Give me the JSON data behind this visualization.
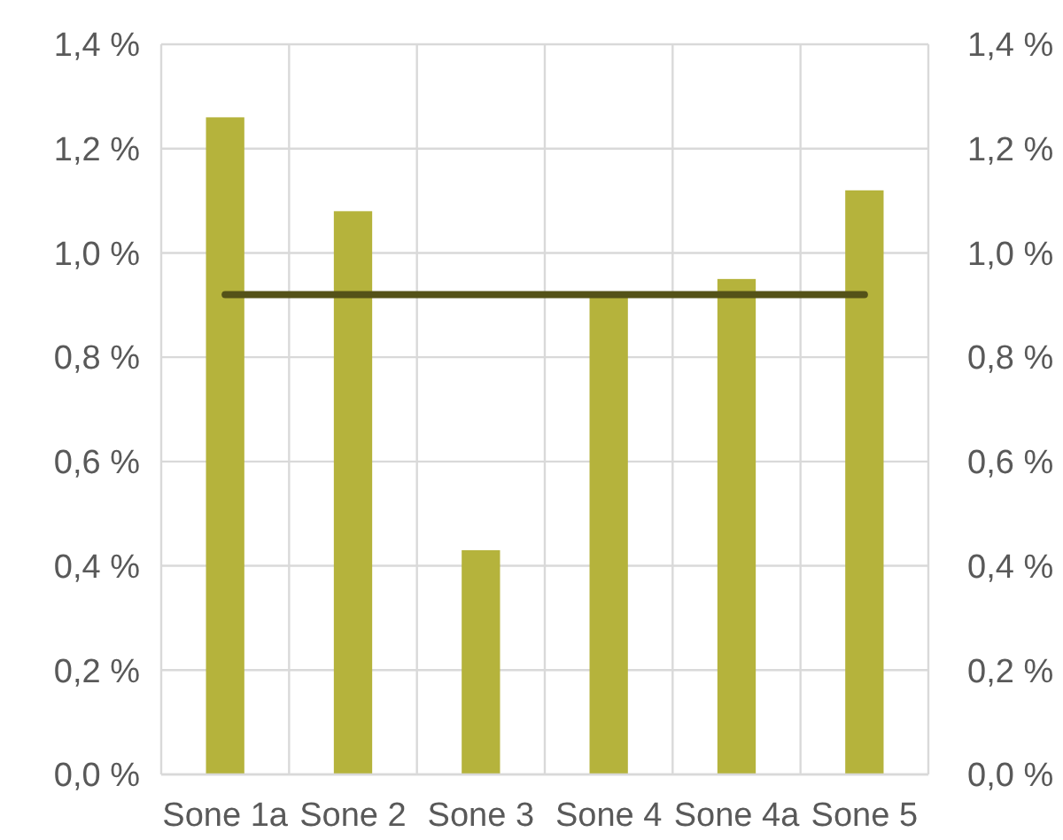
{
  "chart_data": {
    "type": "bar",
    "categories": [
      "Sone 1a",
      "Sone 2",
      "Sone 3",
      "Sone 4",
      "Sone 4a",
      "Sone 5"
    ],
    "series": [
      {
        "color": "#b5b33c",
        "values": [
          1.26,
          1.08,
          0.43,
          0.92,
          0.95,
          1.12
        ]
      },
      {
        "type": "line",
        "color": "#545218",
        "values": [
          0.92,
          0.92,
          0.92,
          0.92,
          0.92,
          0.92
        ]
      }
    ],
    "ylim": [
      0,
      1.4
    ],
    "yticks": [
      {
        "value": 0,
        "label": "0,0 %"
      },
      {
        "value": 0.2,
        "label": "0,2 %"
      },
      {
        "value": 0.4,
        "label": "0,4 %"
      },
      {
        "value": 0.6,
        "label": "0,6 %"
      },
      {
        "value": 0.8,
        "label": "0,8 %"
      },
      {
        "value": 1.0,
        "label": "1,0 %"
      },
      {
        "value": 1.2,
        "label": "1,2 %"
      },
      {
        "value": 1.4,
        "label": "1,4 %"
      }
    ],
    "y2lim": [
      0,
      1.4
    ],
    "y2ticks": [
      {
        "value": 0,
        "label": "0,0 %"
      },
      {
        "value": 0.2,
        "label": "0,2 %"
      },
      {
        "value": 0.4,
        "label": "0,4 %"
      },
      {
        "value": 0.6,
        "label": "0,6 %"
      },
      {
        "value": 0.8,
        "label": "0,8 %"
      },
      {
        "value": 1.0,
        "label": "1,0 %"
      },
      {
        "value": 1.2,
        "label": "1,2 %"
      },
      {
        "value": 1.4,
        "label": "1,4 %"
      }
    ],
    "grid": true,
    "line_style": "solid"
  }
}
